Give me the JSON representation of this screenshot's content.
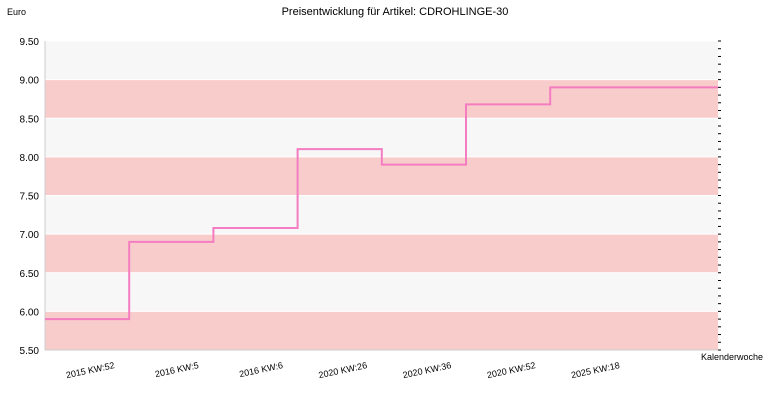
{
  "chart_data": {
    "type": "line",
    "step": true,
    "title": "Preisentwicklung für Artikel: CDROHLINGE-30",
    "ylabel": "Euro",
    "xlabel": "Kalenderwoche",
    "ylim": [
      5.5,
      9.5
    ],
    "y_ticks": [
      "5.50",
      "6.00",
      "6.50",
      "7.00",
      "7.50",
      "8.00",
      "8.50",
      "9.00",
      "9.50"
    ],
    "categories": [
      "2015 KW:52",
      "2016 KW:5",
      "2016 KW:6",
      "2020 KW:26",
      "2020 KW:36",
      "2020 KW:52",
      "2025 KW:18"
    ],
    "series": [
      {
        "values": [
          5.9,
          6.9,
          7.08,
          8.1,
          7.9,
          8.68,
          8.9
        ]
      }
    ],
    "grid": true,
    "colors": {
      "line": "#f47cc0",
      "band": "#f9cccc",
      "band_alt": "#f7f7f7",
      "axis": "#000000"
    }
  }
}
